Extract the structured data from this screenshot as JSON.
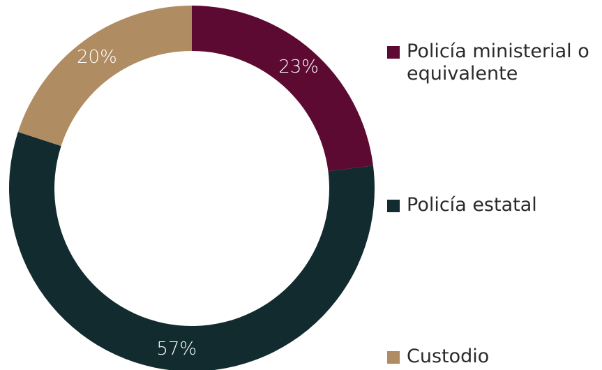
{
  "chart_data": {
    "type": "donut",
    "categories": [
      "Policía ministerial o equivalente",
      "Policía estatal",
      "Custodio"
    ],
    "values": [
      23,
      57,
      20
    ],
    "value_labels": [
      "23%",
      "57%",
      "20%"
    ],
    "colors": [
      "#5c0a31",
      "#112b2e",
      "#b08c62"
    ],
    "legend": "right"
  }
}
